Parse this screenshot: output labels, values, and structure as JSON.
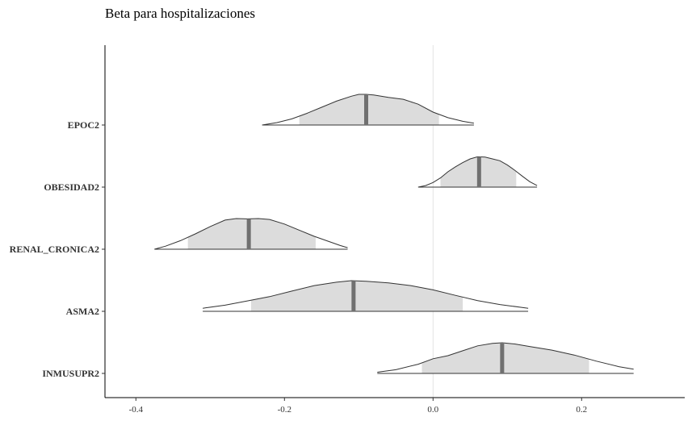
{
  "chart_data": {
    "type": "area",
    "title": "Beta para hospitalizaciones",
    "xlabel": "",
    "ylabel": "",
    "xlim": [
      -0.43,
      0.34
    ],
    "x_ticks": [
      -0.4,
      -0.2,
      0.0,
      0.2
    ],
    "x_tick_labels": [
      "-0.4",
      "-0.2",
      "0.0",
      "0.2"
    ],
    "reference_line_x": 0,
    "grid": false,
    "categories": [
      "EPOC2",
      "OBESIDAD2",
      "RENAL_CRONICA2",
      "ASMA2",
      "INMUSUPR2"
    ],
    "series": [
      {
        "category": "EPOC2",
        "median": -0.09,
        "interval_low": -0.18,
        "interval_high": 0.008,
        "range": [
          -0.23,
          0.055
        ],
        "density": [
          [
            -0.23,
            0.0
          ],
          [
            -0.21,
            0.08
          ],
          [
            -0.19,
            0.2
          ],
          [
            -0.17,
            0.38
          ],
          [
            -0.15,
            0.58
          ],
          [
            -0.13,
            0.78
          ],
          [
            -0.11,
            0.94
          ],
          [
            -0.1,
            1.0
          ],
          [
            -0.09,
            1.0
          ],
          [
            -0.08,
            0.98
          ],
          [
            -0.06,
            0.9
          ],
          [
            -0.04,
            0.84
          ],
          [
            -0.02,
            0.68
          ],
          [
            0.0,
            0.42
          ],
          [
            0.02,
            0.24
          ],
          [
            0.04,
            0.12
          ],
          [
            0.055,
            0.06
          ]
        ]
      },
      {
        "category": "OBESIDAD2",
        "median": 0.062,
        "interval_low": 0.01,
        "interval_high": 0.112,
        "range": [
          -0.02,
          0.14
        ],
        "density": [
          [
            -0.02,
            0.0
          ],
          [
            -0.01,
            0.05
          ],
          [
            0.0,
            0.15
          ],
          [
            0.01,
            0.3
          ],
          [
            0.02,
            0.5
          ],
          [
            0.03,
            0.66
          ],
          [
            0.04,
            0.8
          ],
          [
            0.05,
            0.92
          ],
          [
            0.06,
            0.99
          ],
          [
            0.07,
            0.98
          ],
          [
            0.08,
            0.92
          ],
          [
            0.09,
            0.86
          ],
          [
            0.1,
            0.72
          ],
          [
            0.11,
            0.55
          ],
          [
            0.12,
            0.36
          ],
          [
            0.13,
            0.18
          ],
          [
            0.14,
            0.05
          ]
        ]
      },
      {
        "category": "RENAL_CRONICA2",
        "median": -0.248,
        "interval_low": -0.33,
        "interval_high": -0.158,
        "range": [
          -0.375,
          -0.115
        ],
        "density": [
          [
            -0.375,
            0.0
          ],
          [
            -0.36,
            0.1
          ],
          [
            -0.34,
            0.28
          ],
          [
            -0.32,
            0.5
          ],
          [
            -0.3,
            0.74
          ],
          [
            -0.28,
            0.95
          ],
          [
            -0.265,
            1.0
          ],
          [
            -0.25,
            0.99
          ],
          [
            -0.235,
            1.0
          ],
          [
            -0.22,
            0.97
          ],
          [
            -0.2,
            0.82
          ],
          [
            -0.18,
            0.62
          ],
          [
            -0.16,
            0.42
          ],
          [
            -0.14,
            0.25
          ],
          [
            -0.125,
            0.12
          ],
          [
            -0.115,
            0.05
          ]
        ]
      },
      {
        "category": "ASMA2",
        "median": -0.107,
        "interval_low": -0.245,
        "interval_high": 0.04,
        "range": [
          -0.31,
          0.128
        ],
        "density": [
          [
            -0.31,
            0.1
          ],
          [
            -0.28,
            0.2
          ],
          [
            -0.25,
            0.34
          ],
          [
            -0.22,
            0.48
          ],
          [
            -0.19,
            0.66
          ],
          [
            -0.16,
            0.84
          ],
          [
            -0.13,
            0.95
          ],
          [
            -0.11,
            1.0
          ],
          [
            -0.09,
            0.98
          ],
          [
            -0.06,
            0.93
          ],
          [
            -0.03,
            0.84
          ],
          [
            0.0,
            0.7
          ],
          [
            0.03,
            0.52
          ],
          [
            0.06,
            0.35
          ],
          [
            0.09,
            0.22
          ],
          [
            0.128,
            0.1
          ]
        ]
      },
      {
        "category": "INMUSUPR2",
        "median": 0.093,
        "interval_low": -0.015,
        "interval_high": 0.21,
        "range": [
          -0.075,
          0.27
        ],
        "density": [
          [
            -0.075,
            0.04
          ],
          [
            -0.05,
            0.12
          ],
          [
            -0.02,
            0.3
          ],
          [
            0.0,
            0.48
          ],
          [
            0.02,
            0.58
          ],
          [
            0.04,
            0.74
          ],
          [
            0.06,
            0.9
          ],
          [
            0.08,
            0.98
          ],
          [
            0.093,
            1.0
          ],
          [
            0.11,
            0.96
          ],
          [
            0.13,
            0.88
          ],
          [
            0.16,
            0.76
          ],
          [
            0.19,
            0.6
          ],
          [
            0.22,
            0.4
          ],
          [
            0.25,
            0.22
          ],
          [
            0.27,
            0.14
          ]
        ]
      }
    ]
  }
}
